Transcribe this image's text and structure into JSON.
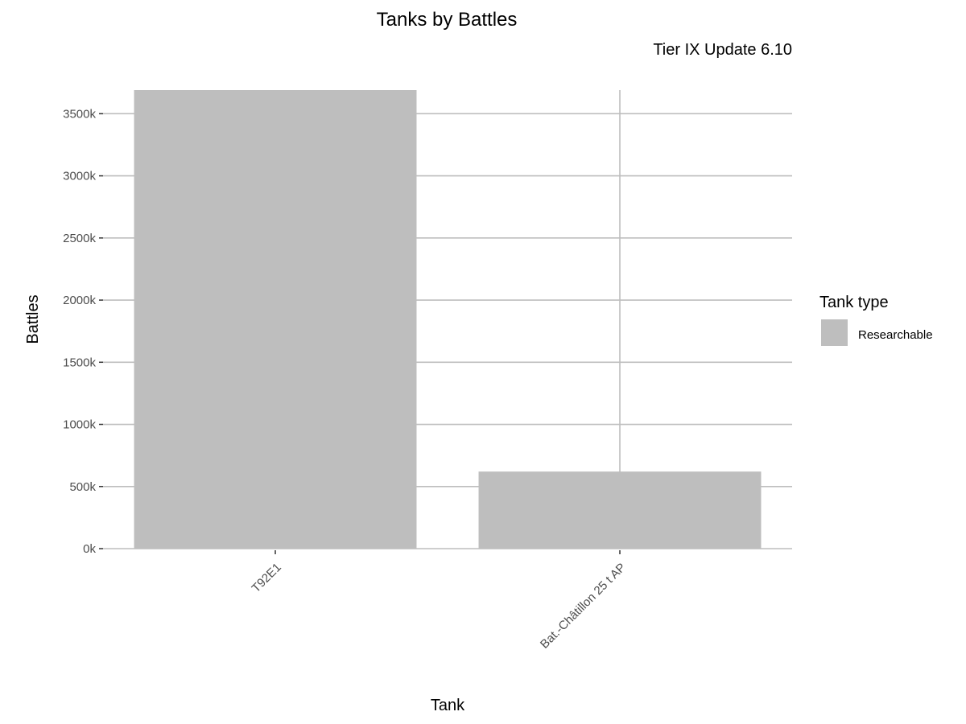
{
  "chart_data": {
    "type": "bar",
    "title": "Tanks by Battles",
    "subtitle": "Tier IX Update 6.10",
    "xlabel": "Tank",
    "ylabel": "Battles",
    "categories": [
      "T92E1",
      "Bat.-Châtillon 25 t AP"
    ],
    "series": [
      {
        "name": "Researchable",
        "values": [
          3690000,
          620000
        ],
        "color": "#bebebe"
      }
    ],
    "ylim": [
      0,
      3690000
    ],
    "yticks": [
      0,
      500000,
      1000000,
      1500000,
      2000000,
      2500000,
      3000000,
      3500000
    ],
    "ytick_labels": [
      "0k",
      "500k",
      "1000k",
      "1500k",
      "2000k",
      "2500k",
      "3000k",
      "3500k"
    ],
    "legend": {
      "title": "Tank type",
      "position": "right"
    },
    "grid": true,
    "grid_color": "#bebebe"
  }
}
